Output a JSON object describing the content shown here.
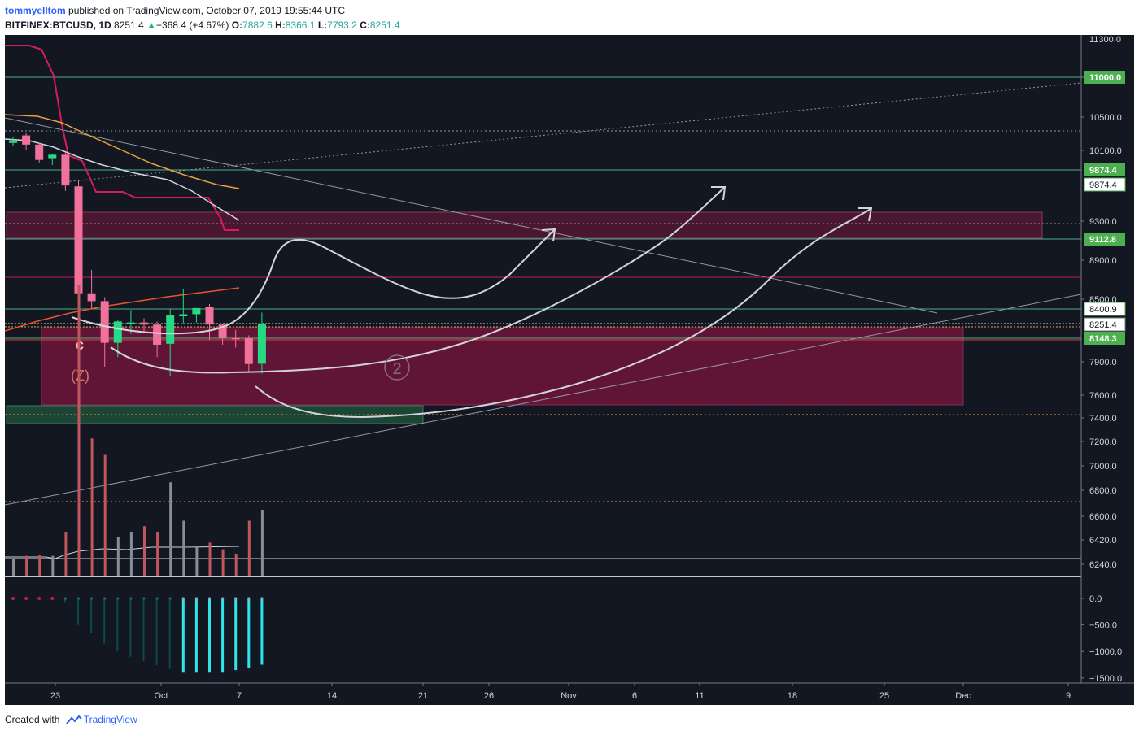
{
  "header": {
    "author": "tommyelltom",
    "published_text": "published on TradingView.com, October 07, 2019 19:55:44 UTC",
    "symbol": "BITFINEX:BTCUSD, 1D",
    "last_price": "8251.4",
    "change": "+368.4 (+4.67%)",
    "open_label": "O:",
    "open": "7882.6",
    "high_label": "H:",
    "high": "8366.1",
    "low_label": "L:",
    "low": "7793.2",
    "close_label": "C:",
    "close": "8251.4"
  },
  "footer": {
    "created_with": "Created with",
    "brand": "TradingView"
  },
  "colors": {
    "background": "#131722",
    "up": "#26d984",
    "down": "#f0719a",
    "level_line": "#4caf87",
    "zone": "#7a1846",
    "cloud": "#c2185b",
    "ema_orange": "#e6a23c",
    "ema_red": "#e8542c",
    "ma_white": "#d1d4dc",
    "hist_cyan": "#2fe3e9",
    "badge_green": "#4caf50"
  },
  "chart_data": {
    "type": "candlestick",
    "symbol": "BITFINEX:BTCUSD",
    "interval": "1D",
    "price_axis_ticks": [
      11000,
      10500,
      10100,
      9300,
      8900,
      8500,
      7900,
      7600,
      7400,
      7200,
      7000,
      6800,
      6600,
      6420,
      6240
    ],
    "price_axis_labels": [
      "11000.0",
      "10500.0",
      "10100.0",
      "9300.0",
      "8900.0",
      "8500.0",
      "7900.0",
      "7600.0",
      "7400.0",
      "7200.0",
      "7000.0",
      "6800.0",
      "6600.0",
      "6420.0",
      "6240.0"
    ],
    "price_badges": [
      {
        "label": "11000.0",
        "value": 11000,
        "style": "green"
      },
      {
        "label": "9874.4",
        "value": 9874.4,
        "style": "green"
      },
      {
        "label": "9874.4",
        "value": 9874.4,
        "style": "green-outline"
      },
      {
        "label": "9112.8",
        "value": 9112.8,
        "style": "green"
      },
      {
        "label": "8400.9",
        "value": 8400.9,
        "style": "green-outline"
      },
      {
        "label": "8251.4",
        "value": 8251.4,
        "style": "white"
      },
      {
        "label": "8148.3",
        "value": 8148.3,
        "style": "green"
      }
    ],
    "horizontal_levels": [
      11000,
      9874.4,
      9112.8,
      8400.9,
      8148.3
    ],
    "time_axis_labels": [
      "23",
      "Oct",
      "7",
      "14",
      "21",
      "26",
      "Nov",
      "6",
      "11",
      "18",
      "25",
      "Dec",
      "9"
    ],
    "candles": [
      {
        "date": "2019-09-18",
        "open": 10190,
        "high": 10260,
        "low": 10160,
        "close": 10220
      },
      {
        "date": "2019-09-19",
        "open": 10280,
        "high": 10310,
        "low": 10100,
        "close": 10170
      },
      {
        "date": "2019-09-20",
        "open": 10170,
        "high": 10190,
        "low": 9960,
        "close": 9990
      },
      {
        "date": "2019-09-21",
        "open": 10010,
        "high": 10060,
        "low": 9930,
        "close": 10050
      },
      {
        "date": "2019-09-22",
        "open": 10050,
        "high": 10080,
        "low": 9640,
        "close": 9700
      },
      {
        "date": "2019-09-23",
        "open": 9690,
        "high": 9760,
        "low": 8130,
        "close": 8560
      },
      {
        "date": "2019-09-24",
        "open": 8560,
        "high": 8800,
        "low": 8400,
        "close": 8480
      },
      {
        "date": "2019-09-25",
        "open": 8480,
        "high": 8520,
        "low": 7850,
        "close": 8100
      },
      {
        "date": "2019-09-26",
        "open": 8100,
        "high": 8300,
        "low": 7950,
        "close": 8280
      },
      {
        "date": "2019-09-27",
        "open": 8260,
        "high": 8390,
        "low": 8180,
        "close": 8270
      },
      {
        "date": "2019-09-28",
        "open": 8270,
        "high": 8310,
        "low": 8190,
        "close": 8250
      },
      {
        "date": "2019-09-29",
        "open": 8250,
        "high": 8280,
        "low": 7950,
        "close": 8080
      },
      {
        "date": "2019-09-30",
        "open": 8090,
        "high": 8400,
        "low": 7770,
        "close": 8340
      },
      {
        "date": "2019-10-01",
        "open": 8330,
        "high": 8600,
        "low": 8260,
        "close": 8350
      },
      {
        "date": "2019-10-02",
        "open": 8350,
        "high": 8400,
        "low": 8270,
        "close": 8410
      },
      {
        "date": "2019-10-03",
        "open": 8420,
        "high": 8450,
        "low": 8130,
        "close": 8250
      },
      {
        "date": "2019-10-04",
        "open": 8250,
        "high": 8260,
        "low": 8080,
        "close": 8150
      },
      {
        "date": "2019-10-05",
        "open": 8150,
        "high": 8210,
        "low": 8050,
        "close": 8140
      },
      {
        "date": "2019-10-06",
        "open": 8150,
        "high": 8170,
        "low": 7810,
        "close": 7880
      },
      {
        "date": "2019-10-07",
        "open": 7882.6,
        "high": 8366.1,
        "low": 7793.2,
        "close": 8251.4
      }
    ],
    "volume_relative": [
      0.15,
      0.18,
      0.19,
      0.18,
      0.4,
      2.65,
      1.25,
      1.1,
      0.35,
      0.4,
      0.45,
      0.4,
      0.85,
      0.5,
      0.26,
      0.3,
      0.24,
      0.2,
      0.5,
      0.6
    ],
    "oscillator_axis_labels": [
      "0.0",
      "−500.0",
      "−1000.0",
      "−1500.0"
    ],
    "oscillator_values": [
      10,
      10,
      10,
      10,
      -80,
      -500,
      -650,
      -850,
      -1000,
      -1100,
      -1180,
      -1260,
      -1330,
      -1400,
      -1400,
      -1400,
      -1400,
      -1350,
      -1320,
      -1250
    ],
    "annotations": {
      "wave_c": "c",
      "wave_z": "(Z)",
      "wave_2": "2"
    }
  }
}
